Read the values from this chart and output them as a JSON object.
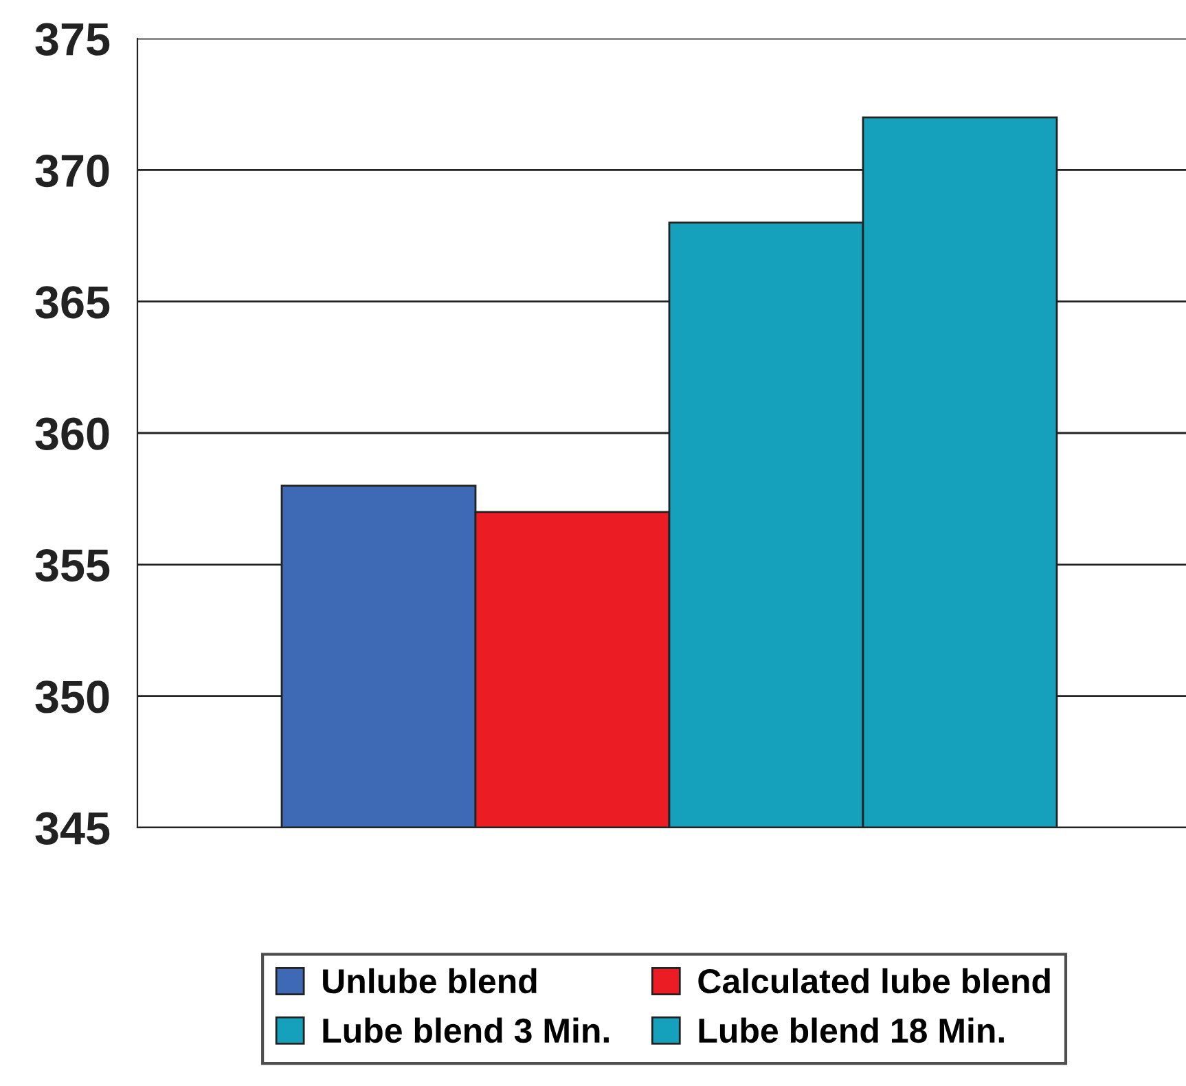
{
  "chart_data": {
    "type": "bar",
    "categories": [
      null
    ],
    "series": [
      {
        "name": "Unlube blend",
        "color": "#3e69b4",
        "values": [
          358
        ]
      },
      {
        "name": "Calculated lube blend",
        "color": "#ec1c24",
        "values": [
          357
        ]
      },
      {
        "name": "Lube blend 3 Min.",
        "color": "#15a0bc",
        "values": [
          368
        ]
      },
      {
        "name": "Lube blend 18 Min.",
        "color": "#15a0bc",
        "values": [
          372
        ]
      }
    ],
    "ylim": [
      345,
      375
    ],
    "yticks": [
      345,
      350,
      355,
      360,
      365,
      370,
      375
    ],
    "grid": "y",
    "legend": "bottom"
  }
}
